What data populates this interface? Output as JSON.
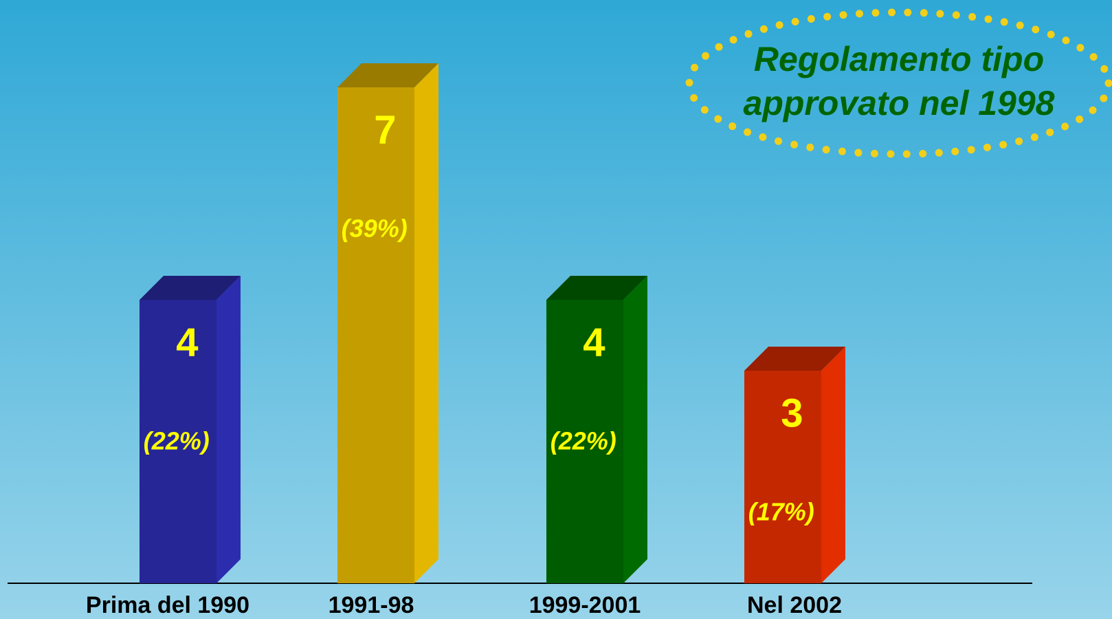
{
  "chart_data": {
    "type": "bar3d",
    "categories": [
      "Prima del 1990",
      "1991-98",
      "1999-2001",
      "Nel 2002"
    ],
    "values": [
      4,
      7,
      4,
      3
    ],
    "share_labels": [
      "(22%)",
      "(39%)",
      "(22%)",
      "(17%)"
    ],
    "colors": [
      "#262696",
      "#c49e00",
      "#005c00",
      "#c42800"
    ],
    "ylim": [
      0,
      8
    ],
    "annotation": [
      "Regolamento tipo",
      "approvato nel 1998"
    ]
  }
}
